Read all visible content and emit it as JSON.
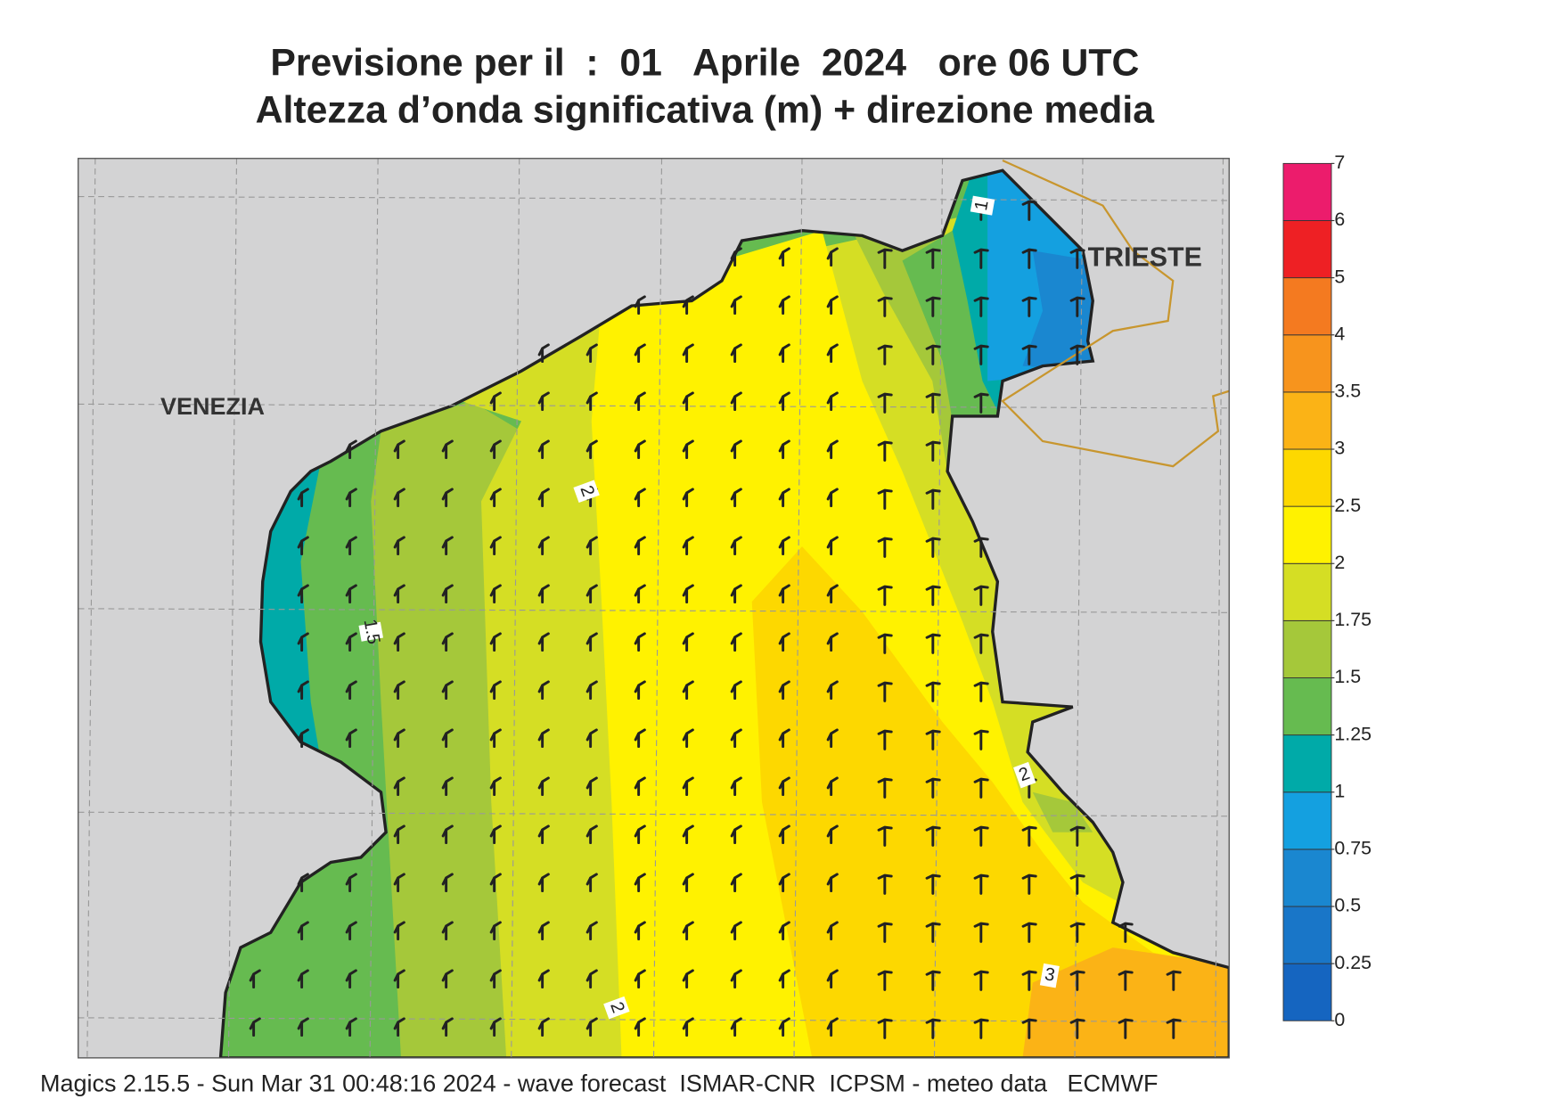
{
  "header": {
    "line1": "Previsione per il  :  01   Aprile  2024   ore 06 UTC",
    "line2": "Altezza d’onda significativa (m) + direzione media"
  },
  "map": {
    "places": [
      "VENEZIA",
      "TRIESTE"
    ],
    "contour_labels": [
      2,
      1.5,
      2,
      2,
      3,
      1
    ]
  },
  "colorbar": {
    "levels": [
      0,
      0.25,
      0.5,
      0.75,
      1,
      1.25,
      1.5,
      1.75,
      2,
      2.5,
      3,
      3.5,
      4,
      5,
      6,
      7
    ],
    "colors": [
      "#1565c0",
      "#1976c8",
      "#1a87d0",
      "#14a0e0",
      "#00aaa8",
      "#66bb50",
      "#a5c83a",
      "#d5de24",
      "#fff200",
      "#fdd800",
      "#fbb316",
      "#f7941d",
      "#f47a20",
      "#ee2024",
      "#ec1c6c"
    ]
  },
  "footer": "Magics 2.15.5 - Sun Mar 31 00:48:16 2024 - wave forecast  ISMAR-CNR  ICPSM - meteo data   ECMWF"
}
